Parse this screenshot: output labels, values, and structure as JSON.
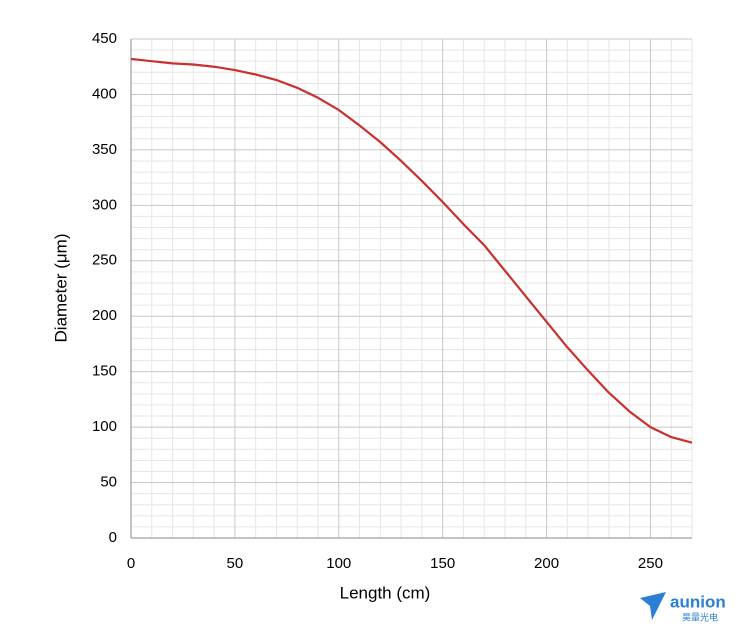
{
  "chart_data": {
    "type": "line",
    "x_label": "Length (cm)",
    "y_label": "Diameter (μm)",
    "x": [
      0,
      10,
      20,
      30,
      40,
      50,
      60,
      70,
      80,
      90,
      100,
      110,
      120,
      130,
      140,
      150,
      160,
      170,
      180,
      190,
      200,
      210,
      220,
      230,
      240,
      250,
      260,
      270
    ],
    "series": [
      {
        "color": "#c8312e",
        "values": [
          432,
          430,
          428,
          427,
          425,
          422,
          418,
          413,
          406,
          397,
          386,
          372,
          357,
          340,
          322,
          303,
          283,
          264,
          241,
          218,
          195,
          172,
          151,
          131,
          114,
          100,
          91,
          86
        ]
      }
    ],
    "xlim": [
      0,
      270
    ],
    "ylim": [
      0,
      450
    ],
    "xticks": [
      0,
      50,
      100,
      150,
      200,
      250
    ],
    "yticks": [
      0,
      50,
      100,
      150,
      200,
      250,
      300,
      350,
      400,
      450
    ],
    "x_minor_ticks": [
      10,
      20,
      30,
      40,
      60,
      70,
      80,
      90,
      110,
      120,
      130,
      140,
      160,
      170,
      180,
      190,
      210,
      220,
      230,
      240,
      260,
      270
    ],
    "y_minor_ticks": [
      10,
      20,
      30,
      40,
      60,
      70,
      80,
      90,
      110,
      120,
      130,
      140,
      160,
      170,
      180,
      190,
      210,
      220,
      230,
      240,
      260,
      270,
      280,
      290,
      310,
      320,
      330,
      340,
      360,
      370,
      380,
      390,
      410,
      420,
      430,
      440
    ],
    "grid": true,
    "logo": {
      "name": "aunion",
      "subtitle": "昊量光电"
    }
  }
}
